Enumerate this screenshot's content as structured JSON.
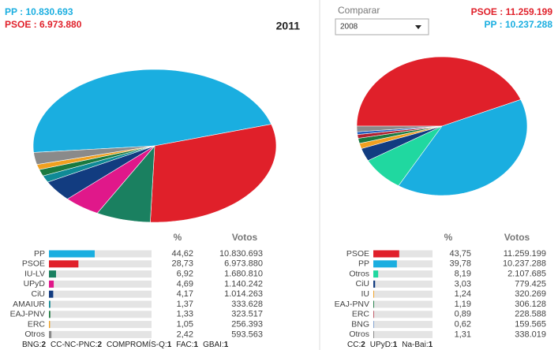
{
  "left": {
    "header": {
      "first": "PP : 10.830.693",
      "second": "PSOE : 6.973.880",
      "year": "2011"
    },
    "columns": [
      "%",
      "Votos"
    ],
    "footer": [
      {
        "name": "BNG:",
        "seats": "2"
      },
      {
        "name": "CC-NC-PNC:",
        "seats": "2"
      },
      {
        "name": "COMPROMÍS-Q:",
        "seats": "1"
      },
      {
        "name": "FAC:",
        "seats": "1"
      },
      {
        "name": "GBAI:",
        "seats": "1"
      }
    ]
  },
  "right": {
    "compare": "Comparar",
    "select": "2008",
    "header": {
      "first": "PSOE : 11.259.199",
      "second": "PP : 10.237.288"
    },
    "columns": [
      "%",
      "Votos"
    ],
    "footer": [
      {
        "name": "CC:",
        "seats": "2"
      },
      {
        "name": "UPyD:",
        "seats": "1"
      },
      {
        "name": "Na-Bai:",
        "seats": "1"
      }
    ]
  },
  "chart_data": [
    {
      "type": "pie",
      "categories": [
        "PP",
        "PSOE",
        "IU-LV",
        "UPyD",
        "CiU",
        "AMAIUR",
        "EAJ-PNV",
        "ERC",
        "Otros"
      ],
      "values": [
        44.62,
        28.73,
        6.92,
        4.69,
        4.17,
        1.37,
        1.33,
        1.05,
        2.42
      ],
      "value_labels": [
        "44,62",
        "28,73",
        "6,92",
        "4,69",
        "4,17",
        "1,37",
        "1,33",
        "1,05",
        "2,42"
      ],
      "votes": [
        "10.830.693",
        "6.973.880",
        "1.680.810",
        "1.140.242",
        "1.014.263",
        "333.628",
        "323.517",
        "256.393",
        "593.563"
      ],
      "colors": [
        "#1aaee0",
        "#e0202a",
        "#1a8060",
        "#e0188a",
        "#123c80",
        "#0f8a96",
        "#1a7a40",
        "#f0a020",
        "#8a8a8a"
      ]
    },
    {
      "type": "pie",
      "categories": [
        "PSOE",
        "PP",
        "Otros",
        "CiU",
        "IU",
        "EAJ-PNV",
        "ERC",
        "BNG",
        "Otros"
      ],
      "values": [
        43.75,
        39.78,
        8.19,
        3.03,
        1.24,
        1.19,
        0.89,
        0.62,
        1.31
      ],
      "value_labels": [
        "43,75",
        "39,78",
        "8,19",
        "3,03",
        "1,24",
        "1,19",
        "0,89",
        "0,62",
        "1,31"
      ],
      "votes": [
        "11.259.199",
        "10.237.288",
        "2.107.685",
        "779.425",
        "320.269",
        "306.128",
        "228.588",
        "159.565",
        "338.019"
      ],
      "colors": [
        "#e0202a",
        "#1aaee0",
        "#20d8a0",
        "#123c80",
        "#f0a020",
        "#1a7a40",
        "#b02030",
        "#2060c0",
        "#8a8a8a"
      ]
    }
  ]
}
